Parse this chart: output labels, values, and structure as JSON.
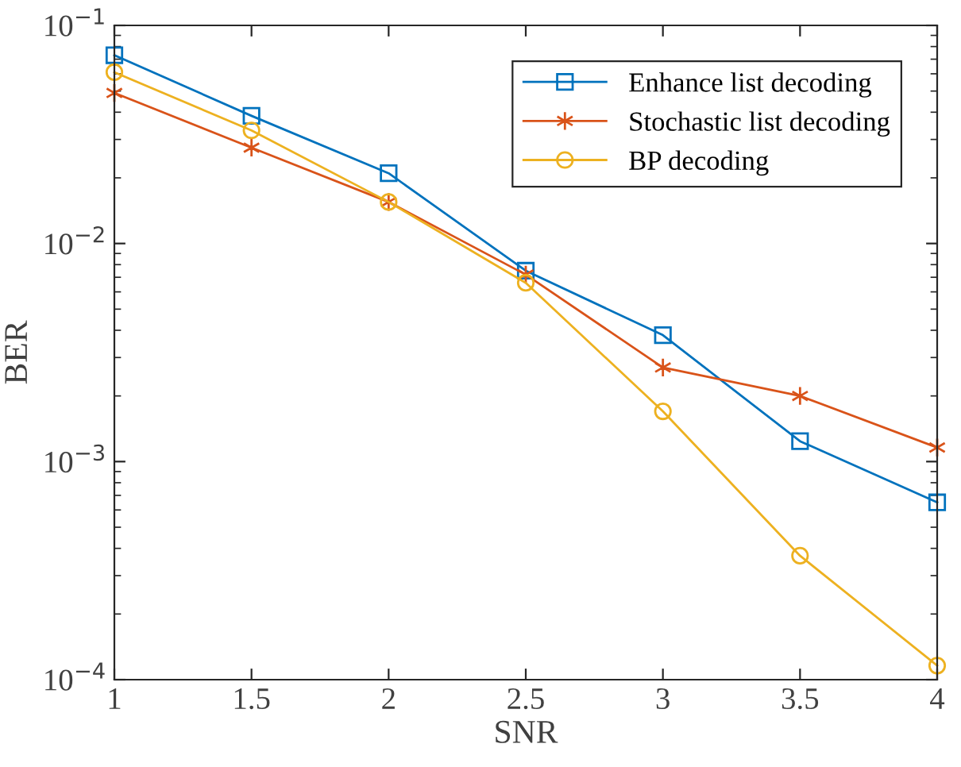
{
  "chart_data": {
    "type": "line",
    "xlabel": "SNR",
    "ylabel": "BER",
    "log": "y",
    "x": [
      1,
      1.5,
      2,
      2.5,
      3,
      3.5,
      4
    ],
    "series": [
      {
        "name": "Enhance list decoding",
        "color": "#0072bd",
        "marker": "square",
        "values": [
          0.073,
          0.0385,
          0.021,
          0.0075,
          0.0038,
          0.00124,
          0.00065
        ]
      },
      {
        "name": "Stochastic list decoding",
        "color": "#d95319",
        "marker": "cross",
        "values": [
          0.049,
          0.0275,
          0.0155,
          0.0072,
          0.0027,
          0.002,
          0.00116
        ]
      },
      {
        "name": "BP decoding",
        "color": "#edb120",
        "marker": "circle",
        "values": [
          0.061,
          0.033,
          0.0155,
          0.0066,
          0.0017,
          0.00037,
          0.000116
        ]
      }
    ],
    "xlim": [
      1,
      4
    ],
    "xticks": [
      1,
      1.5,
      2,
      2.5,
      3,
      3.5,
      4
    ],
    "ylim": [
      0.0001,
      0.1
    ],
    "yticks": [
      {
        "value": 0.0001,
        "label": "10$^{−4}$"
      },
      {
        "value": 0.001,
        "label": "10$^{−3}$"
      },
      {
        "value": 0.01,
        "label": "10$^{−2}$"
      },
      {
        "value": 0.1,
        "label": "10$^{−1}$"
      }
    ],
    "grid": false,
    "legend": "top right",
    "line_style": "solid"
  }
}
